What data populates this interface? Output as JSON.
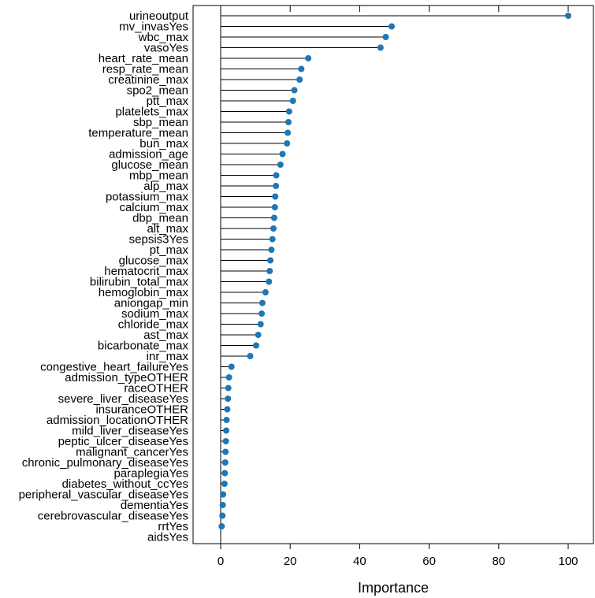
{
  "chart_data": {
    "type": "lollipop",
    "orientation": "horizontal",
    "xlabel": "Importance",
    "xlim": [
      -8,
      107
    ],
    "xticks": [
      0,
      20,
      40,
      60,
      80,
      100
    ],
    "xtick_labels": [
      "0",
      "20",
      "40",
      "60",
      "80",
      "100"
    ],
    "point_color": "#1f77b4",
    "stem_color": "#000000",
    "categories": [
      "urineoutput",
      "mv_invasYes",
      "wbc_max",
      "vasoYes",
      "heart_rate_mean",
      "resp_rate_mean",
      "creatinine_max",
      "spo2_mean",
      "ptt_max",
      "platelets_max",
      "sbp_mean",
      "temperature_mean",
      "bun_max",
      "admission_age",
      "glucose_mean",
      "mbp_mean",
      "alp_max",
      "potassium_max",
      "calcium_max",
      "dbp_mean",
      "alt_max",
      "sepsis3Yes",
      "pt_max",
      "glucose_max",
      "hematocrit_max",
      "bilirubin_total_max",
      "hemoglobin_max",
      "aniongap_min",
      "sodium_max",
      "chloride_max",
      "ast_max",
      "bicarbonate_max",
      "inr_max",
      "congestive_heart_failureYes",
      "admission_typeOTHER",
      "raceOTHER",
      "severe_liver_diseaseYes",
      "insuranceOTHER",
      "admission_locationOTHER",
      "mild_liver_diseaseYes",
      "peptic_ulcer_diseaseYes",
      "malignant_cancerYes",
      "chronic_pulmonary_diseaseYes",
      "paraplegiaYes",
      "diabetes_without_ccYes",
      "peripheral_vascular_diseaseYes",
      "dementiaYes",
      "cerebrovascular_diseaseYes",
      "rrtYes",
      "aidsYes"
    ],
    "values": [
      100,
      49.2,
      47.5,
      46.0,
      25.2,
      23.2,
      22.7,
      21.2,
      20.8,
      19.7,
      19.5,
      19.3,
      19.1,
      17.8,
      17.2,
      16.0,
      15.9,
      15.7,
      15.6,
      15.4,
      15.2,
      14.9,
      14.6,
      14.3,
      14.1,
      13.9,
      12.9,
      12.0,
      11.8,
      11.5,
      10.8,
      10.2,
      8.5,
      3.1,
      2.4,
      2.2,
      2.1,
      1.9,
      1.7,
      1.6,
      1.5,
      1.4,
      1.3,
      1.2,
      1.1,
      0.7,
      0.6,
      0.5,
      0.3,
      0.0
    ]
  }
}
